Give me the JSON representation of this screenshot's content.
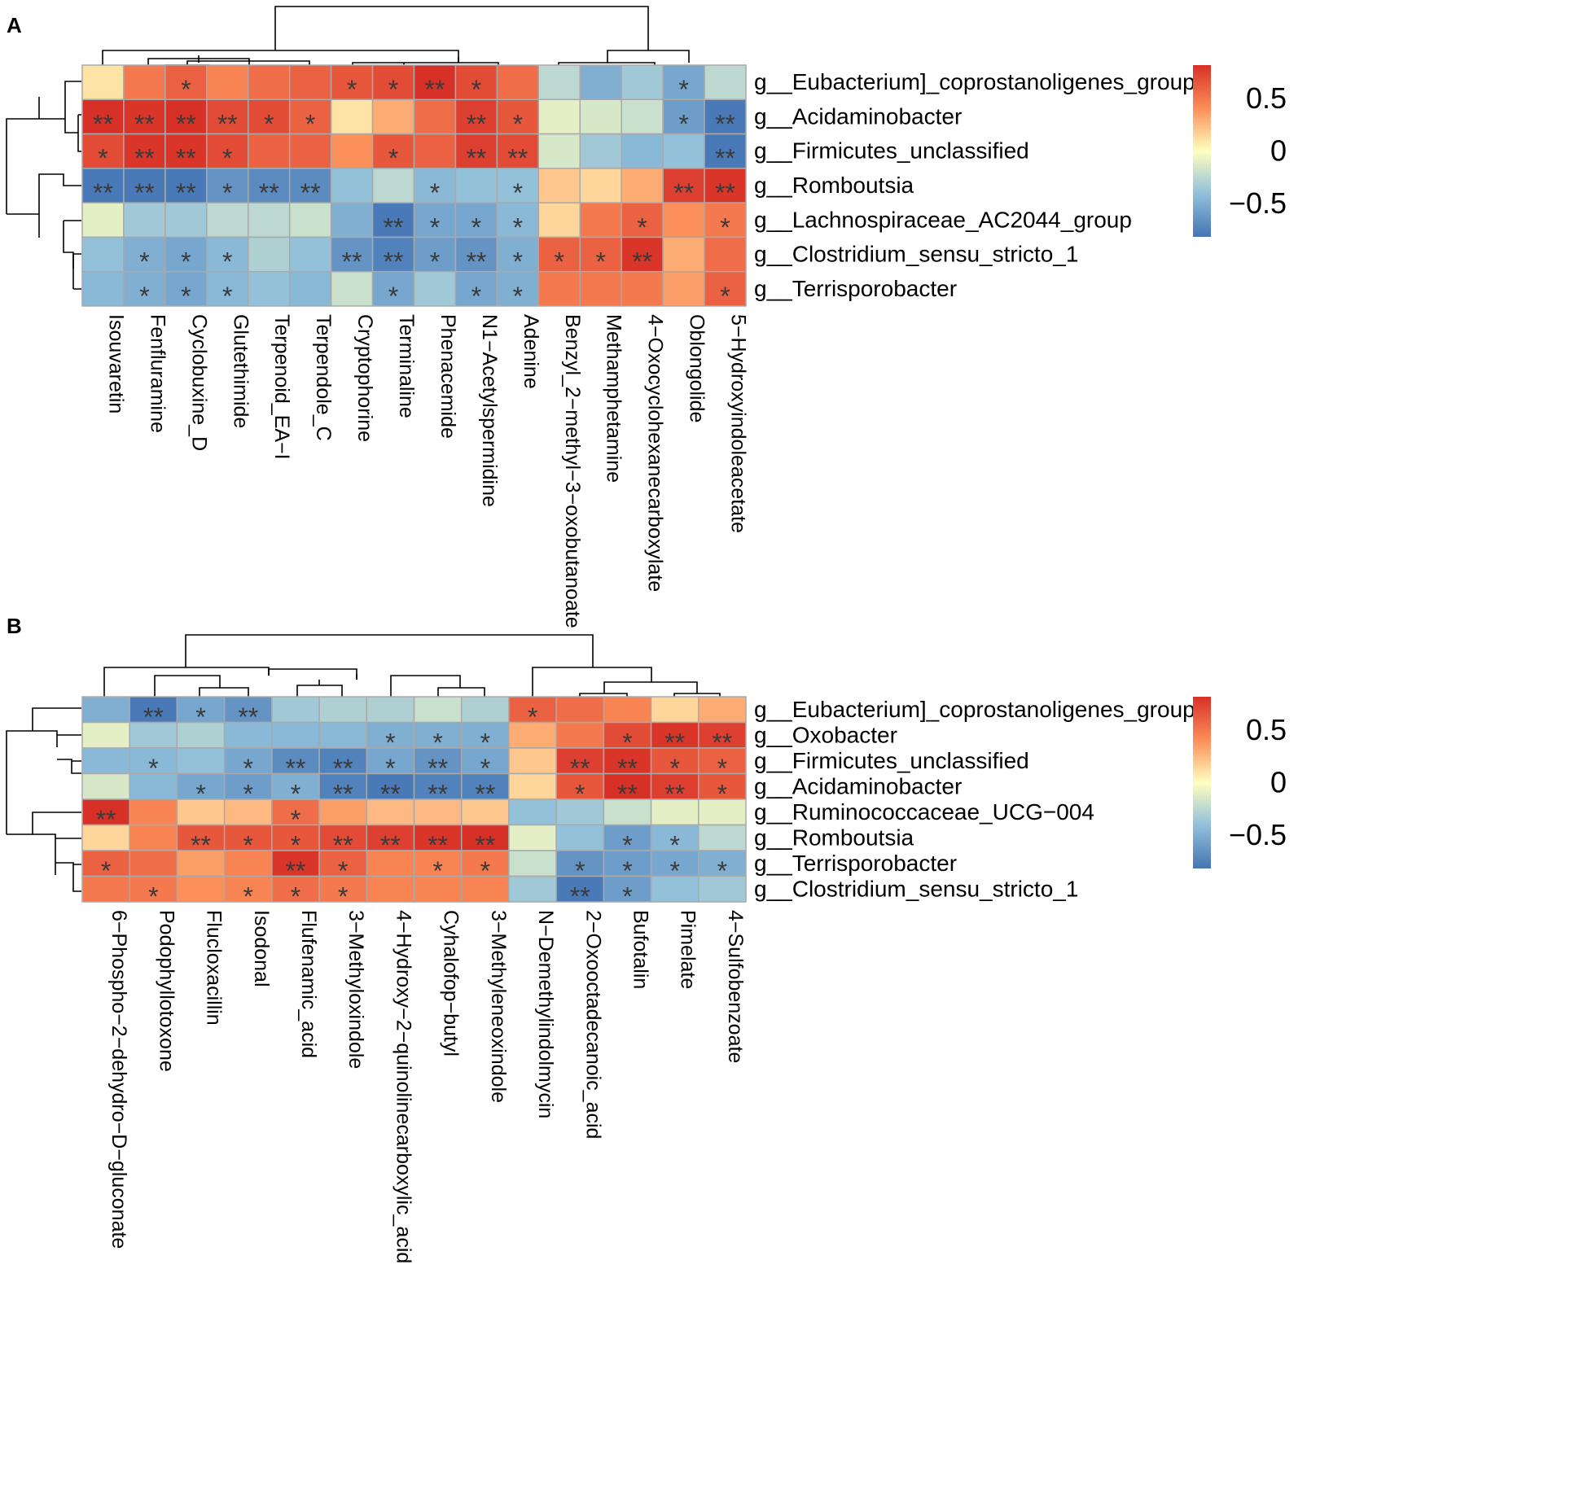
{
  "chart_data": [
    {
      "type": "heatmap",
      "panel_label": "A",
      "rows": [
        "g__Eubacterium]_coprostanoligenes_group",
        "g__Acidaminobacter",
        "g__Firmicutes_unclassified",
        "g__Romboutsia",
        "g__Lachnospiraceae_AC2044_group",
        "g__Clostridium_sensu_stricto_1",
        "g__Terrisporobacter"
      ],
      "columns": [
        "Isouvaretin",
        "Fenfluramine",
        "Cyclobuxine_D",
        "Glutethimide",
        "Terpenoid_EA−I",
        "Terpendole_C",
        "Cryptophorine",
        "Terminaline",
        "Phenacemide",
        "N1−Acetylspermidine",
        "Adenine",
        "Benzyl_2−methyl−3−oxobutanoate",
        "Methamphetamine",
        "4−Oxocyclohexanecarboxylate",
        "Oblongolide",
        "5−Hydroxyindoleacetate"
      ],
      "values": [
        [
          0.1,
          0.5,
          0.6,
          0.45,
          0.55,
          0.6,
          0.65,
          0.7,
          0.85,
          0.7,
          0.55,
          -0.25,
          -0.5,
          -0.35,
          -0.55,
          -0.25
        ],
        [
          0.9,
          0.8,
          0.85,
          0.7,
          0.7,
          0.6,
          0.1,
          0.3,
          0.55,
          0.75,
          0.65,
          -0.1,
          -0.15,
          -0.2,
          -0.6,
          -0.8
        ],
        [
          0.7,
          0.8,
          0.8,
          0.7,
          0.6,
          0.6,
          0.4,
          0.65,
          0.6,
          0.75,
          0.7,
          -0.15,
          -0.35,
          -0.45,
          -0.4,
          -0.8
        ],
        [
          -0.8,
          -0.8,
          -0.8,
          -0.65,
          -0.7,
          -0.7,
          -0.4,
          -0.25,
          -0.45,
          -0.4,
          -0.4,
          0.2,
          0.15,
          0.3,
          0.75,
          0.8
        ],
        [
          -0.1,
          -0.35,
          -0.35,
          -0.25,
          -0.25,
          -0.2,
          -0.5,
          -0.8,
          -0.55,
          -0.55,
          -0.45,
          0.15,
          0.5,
          0.6,
          0.4,
          0.5
        ],
        [
          -0.4,
          -0.5,
          -0.55,
          -0.45,
          -0.3,
          -0.4,
          -0.65,
          -0.75,
          -0.6,
          -0.65,
          -0.5,
          0.6,
          0.6,
          0.8,
          0.3,
          0.55
        ],
        [
          -0.45,
          -0.5,
          -0.55,
          -0.45,
          -0.4,
          -0.45,
          -0.2,
          -0.55,
          -0.35,
          -0.55,
          -0.5,
          0.5,
          0.5,
          0.5,
          0.35,
          0.6
        ]
      ],
      "significance": [
        [
          "",
          "",
          "*",
          "",
          "",
          "",
          "*",
          "*",
          "**",
          "*",
          "",
          "",
          "",
          "",
          "*",
          ""
        ],
        [
          "**",
          "**",
          "**",
          "**",
          "*",
          "*",
          "",
          "",
          "",
          "**",
          "*",
          "",
          "",
          "",
          "*",
          "**"
        ],
        [
          "*",
          "**",
          "**",
          "*",
          "",
          "",
          "",
          "*",
          "",
          "**",
          "**",
          "",
          "",
          "",
          "",
          "**"
        ],
        [
          "**",
          "**",
          "**",
          "*",
          "**",
          "**",
          "",
          "",
          "*",
          "",
          "*",
          "",
          "",
          "",
          "**",
          "**"
        ],
        [
          "",
          "",
          "",
          "",
          "",
          "",
          "",
          "**",
          "*",
          "*",
          "*",
          "",
          "",
          "*",
          "",
          "*"
        ],
        [
          "",
          "*",
          "*",
          "*",
          "",
          "",
          "**",
          "**",
          "*",
          "**",
          "*",
          "*",
          "*",
          "**",
          "",
          ""
        ],
        [
          "",
          "*",
          "*",
          "*",
          "",
          "",
          "",
          "*",
          "",
          "*",
          "*",
          "",
          "",
          "",
          "",
          "*"
        ]
      ],
      "legend": {
        "ticks": [
          "0.5",
          "0",
          "−0.5"
        ],
        "tick_values": [
          0.5,
          0,
          -0.5
        ],
        "range": [
          -0.82,
          0.82
        ]
      }
    },
    {
      "type": "heatmap",
      "panel_label": "B",
      "rows": [
        "g__Eubacterium]_coprostanoligenes_group",
        "g__Oxobacter",
        "g__Firmicutes_unclassified",
        "g__Acidaminobacter",
        "g__Ruminococcaceae_UCG−004",
        "g__Romboutsia",
        "g__Terrisporobacter",
        "g__Clostridium_sensu_stricto_1"
      ],
      "columns": [
        "6−Phospho−2−dehydro−D−gluconate",
        "Podophyllotoxone",
        "Flucloxacillin",
        "Isodonal",
        "Flufenamic_acid",
        "3−Methyloxindole",
        "4−Hydroxy−2−quinolinecarboxylic_acid",
        "Cyhalofop−butyl",
        "3−Methyleneoxindole",
        "N−Demethylindolmycin",
        "2−Oxooctadecanoic_acid",
        "Bufotalin",
        "Pimelate",
        "4−Sulfobenzoate"
      ],
      "values": [
        [
          -0.5,
          -0.8,
          -0.55,
          -0.65,
          -0.35,
          -0.3,
          -0.3,
          -0.2,
          -0.3,
          0.6,
          0.55,
          0.45,
          0.15,
          0.3
        ],
        [
          -0.1,
          -0.35,
          -0.3,
          -0.45,
          -0.45,
          -0.45,
          -0.5,
          -0.5,
          -0.5,
          0.3,
          0.5,
          0.7,
          0.8,
          0.75
        ],
        [
          -0.45,
          -0.45,
          -0.4,
          -0.55,
          -0.7,
          -0.75,
          -0.55,
          -0.65,
          -0.55,
          0.2,
          0.75,
          0.8,
          0.65,
          0.6
        ],
        [
          -0.15,
          -0.45,
          -0.55,
          -0.6,
          -0.5,
          -0.75,
          -0.8,
          -0.75,
          -0.75,
          0.15,
          0.65,
          0.85,
          0.75,
          0.65
        ],
        [
          0.9,
          0.45,
          0.2,
          0.25,
          0.55,
          0.35,
          0.25,
          0.25,
          0.2,
          -0.4,
          -0.35,
          -0.2,
          -0.1,
          -0.1
        ],
        [
          0.15,
          0.45,
          0.65,
          0.65,
          0.65,
          0.7,
          0.75,
          0.8,
          0.85,
          -0.1,
          -0.4,
          -0.6,
          -0.45,
          -0.25
        ],
        [
          0.6,
          0.55,
          0.35,
          0.45,
          0.8,
          0.6,
          0.45,
          0.45,
          0.5,
          -0.2,
          -0.65,
          -0.6,
          -0.55,
          -0.5
        ],
        [
          0.5,
          0.5,
          0.4,
          0.45,
          0.55,
          0.5,
          0.45,
          0.45,
          0.45,
          -0.35,
          -0.8,
          -0.6,
          -0.4,
          -0.35
        ]
      ],
      "significance": [
        [
          "",
          "**",
          "*",
          "**",
          "",
          "",
          "",
          "",
          "",
          "*",
          "",
          "",
          "",
          ""
        ],
        [
          "",
          "",
          "",
          "",
          "",
          "",
          "*",
          "*",
          "*",
          "",
          "",
          "*",
          "**",
          "**"
        ],
        [
          "",
          "*",
          "",
          "*",
          "**",
          "**",
          "*",
          "**",
          "*",
          "",
          "**",
          "**",
          "*",
          "*"
        ],
        [
          "",
          "",
          "*",
          "*",
          "*",
          "**",
          "**",
          "**",
          "**",
          "",
          "*",
          "**",
          "**",
          "*"
        ],
        [
          "**",
          "",
          "",
          "",
          "*",
          "",
          "",
          "",
          "",
          "",
          "",
          "",
          "",
          ""
        ],
        [
          "",
          "",
          "**",
          "*",
          "*",
          "**",
          "**",
          "**",
          "**",
          "",
          "",
          "*",
          "*",
          ""
        ],
        [
          "*",
          "",
          "",
          "",
          "**",
          "*",
          "",
          "*",
          "*",
          "",
          "*",
          "*",
          "*",
          "*"
        ],
        [
          "",
          "*",
          "",
          "*",
          "*",
          "*",
          "",
          "",
          "",
          "",
          "**",
          "*",
          "",
          ""
        ]
      ],
      "legend": {
        "ticks": [
          "0.5",
          "0",
          "−0.5"
        ],
        "tick_values": [
          0.5,
          0,
          -0.5
        ],
        "range": [
          -0.82,
          0.82
        ]
      }
    }
  ]
}
